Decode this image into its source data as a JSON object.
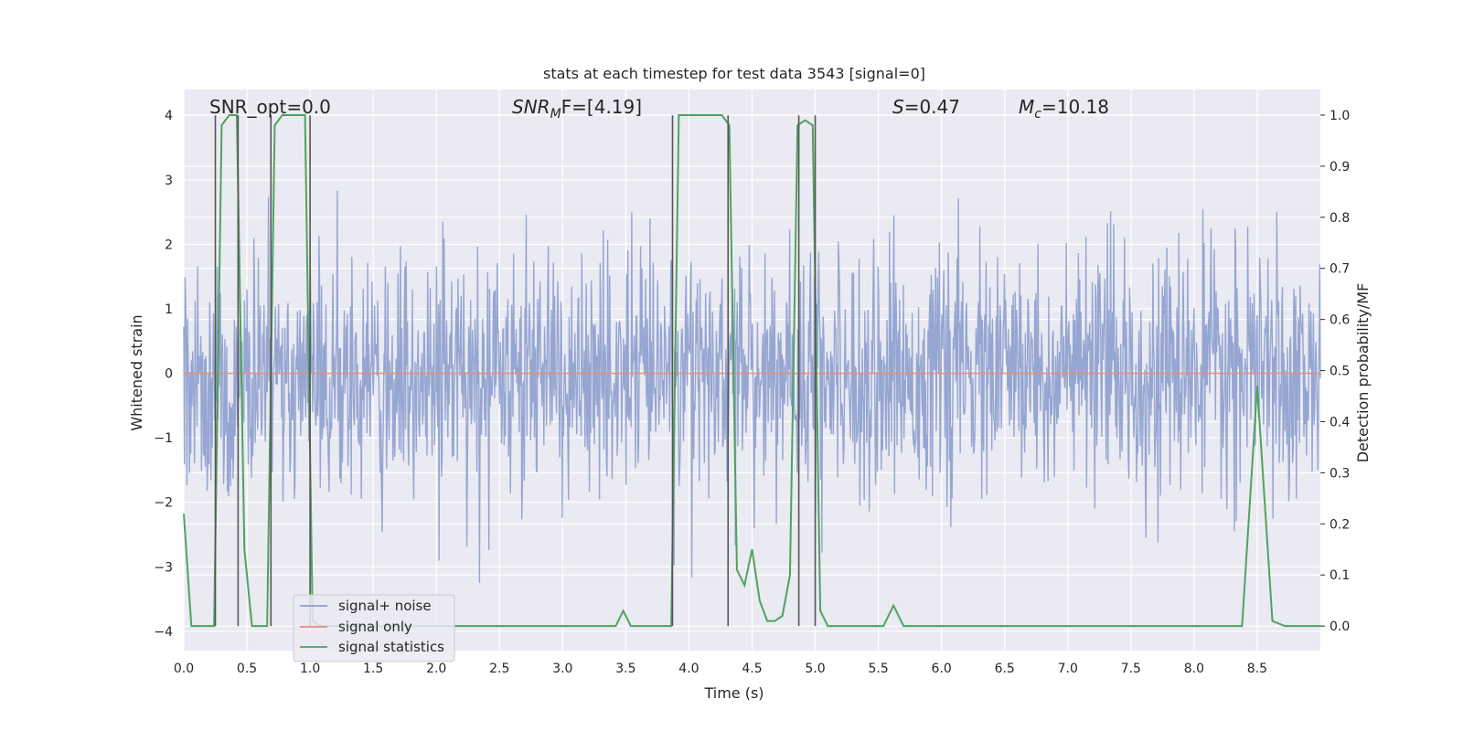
{
  "chart_data": {
    "type": "line",
    "title": "stats at each timestep for test data 3543 [signal=0]",
    "xlabel": "Time (s)",
    "ylabel_left": "Whitened strain",
    "ylabel_right": "Detection probability/MF",
    "xlim": [
      0.0,
      9.0
    ],
    "ylim_left": [
      -4.3,
      4.4
    ],
    "ylim_right": [
      -0.048,
      1.05
    ],
    "x_ticks": [
      0.0,
      0.5,
      1.0,
      1.5,
      2.0,
      2.5,
      3.0,
      3.5,
      4.0,
      4.5,
      5.0,
      5.5,
      6.0,
      6.5,
      7.0,
      7.5,
      8.0,
      8.5
    ],
    "x_tick_labels": [
      "0.0",
      "0.5",
      "1.0",
      "1.5",
      "2.0",
      "2.5",
      "3.0",
      "3.5",
      "4.0",
      "4.5",
      "5.0",
      "5.5",
      "6.0",
      "6.5",
      "7.0",
      "7.5",
      "8.0",
      "8.5"
    ],
    "y_left_ticks": [
      -4,
      -3,
      -2,
      -1,
      0,
      1,
      2,
      3,
      4
    ],
    "y_left_tick_labels": [
      "−4",
      "−3",
      "−2",
      "−1",
      "0",
      "1",
      "2",
      "3",
      "4"
    ],
    "y_right_ticks": [
      0.0,
      0.1,
      0.2,
      0.3,
      0.4,
      0.5,
      0.6,
      0.7,
      0.8,
      0.9,
      1.0
    ],
    "y_right_tick_labels": [
      "0.0",
      "0.1",
      "0.2",
      "0.3",
      "0.4",
      "0.5",
      "0.6",
      "0.7",
      "0.8",
      "0.9",
      "1.0"
    ],
    "grid": true,
    "legend_position": "lower-left",
    "annotations": {
      "snr_opt": "SNR_opt=0.0",
      "snr_mf": {
        "base": "SNR",
        "sub": "M",
        "tail": "F=[4.19]"
      },
      "s": {
        "var": "S",
        "tail": "=0.47"
      },
      "mc": {
        "base": "M",
        "sub": "c",
        "tail": "=10.18"
      }
    },
    "series": [
      {
        "name": "signal+ noise",
        "color": "#8c9fce",
        "axis": "left",
        "kind": "noise",
        "envelope_std": 0.9,
        "range": [
          -3.9,
          4.0
        ]
      },
      {
        "name": "signal only",
        "color": "#e29078",
        "axis": "left",
        "x": [
          0.0,
          9.0
        ],
        "y": [
          0.0,
          0.0
        ]
      },
      {
        "name": "signal statistics",
        "color": "#4fa35f",
        "axis": "right",
        "x": [
          0.0,
          0.06,
          0.12,
          0.18,
          0.24,
          0.3,
          0.36,
          0.42,
          0.48,
          0.54,
          0.6,
          0.66,
          0.72,
          0.78,
          0.84,
          0.9,
          0.96,
          1.02,
          1.08,
          1.14,
          3.42,
          3.48,
          3.54,
          3.86,
          3.92,
          3.98,
          4.1,
          4.26,
          4.32,
          4.38,
          4.44,
          4.5,
          4.56,
          4.62,
          4.68,
          4.74,
          4.8,
          4.86,
          4.92,
          4.98,
          5.04,
          5.1,
          5.54,
          5.62,
          5.7,
          8.38,
          8.5,
          8.62,
          8.72,
          9.0
        ],
        "y": [
          0.22,
          0.0,
          0.0,
          0.0,
          0.0,
          0.98,
          1.0,
          1.0,
          0.15,
          0.0,
          0.0,
          0.0,
          0.98,
          1.0,
          1.0,
          1.0,
          1.0,
          0.01,
          0.0,
          0.0,
          0.0,
          0.03,
          0.0,
          0.0,
          1.0,
          1.0,
          1.0,
          1.0,
          0.98,
          0.11,
          0.08,
          0.15,
          0.05,
          0.01,
          0.01,
          0.02,
          0.1,
          0.98,
          0.99,
          0.98,
          0.03,
          0.0,
          0.0,
          0.04,
          0.0,
          0.0,
          0.47,
          0.01,
          0.0,
          0.0
        ]
      }
    ],
    "vlines": {
      "color": "#555555",
      "x": [
        0.25,
        0.43,
        0.69,
        1.0,
        3.87,
        4.31,
        4.87,
        5.0
      ]
    },
    "colors": {
      "plot_bg": "#eaeaf2",
      "grid": "#ffffff",
      "text": "#262626"
    }
  }
}
